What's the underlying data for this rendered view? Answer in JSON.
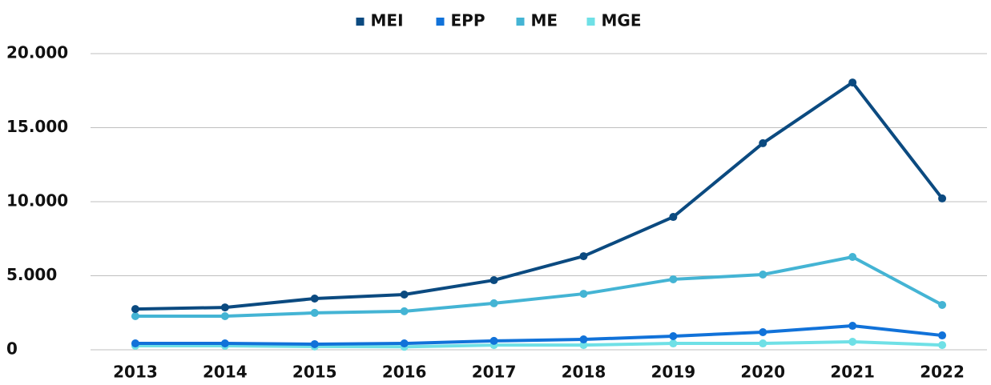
{
  "chart_data": {
    "type": "line",
    "categories": [
      "2013",
      "2014",
      "2015",
      "2016",
      "2017",
      "2018",
      "2019",
      "2020",
      "2021",
      "2022"
    ],
    "series": [
      {
        "name": "MEI",
        "color": "#0b4a80",
        "values": [
          2750,
          2860,
          3460,
          3730,
          4700,
          6320,
          8970,
          13950,
          18050,
          10220
        ]
      },
      {
        "name": "EPP",
        "color": "#1172d9",
        "values": [
          430,
          430,
          380,
          430,
          600,
          700,
          920,
          1190,
          1620,
          970
        ]
      },
      {
        "name": "ME",
        "color": "#44b4d4",
        "values": [
          2270,
          2270,
          2490,
          2600,
          3140,
          3780,
          4760,
          5080,
          6270,
          3030
        ]
      },
      {
        "name": "MGE",
        "color": "#6fe0e6",
        "values": [
          270,
          270,
          220,
          200,
          320,
          320,
          430,
          430,
          540,
          320
        ]
      }
    ],
    "ylim": [
      0,
      20000
    ],
    "yticks": [
      0,
      {
        "value": 5000,
        "label": "5.000"
      },
      {
        "value": 10000,
        "label": "10.000"
      },
      {
        "value": 15000,
        "label": "15.000"
      },
      {
        "value": 20000,
        "label": "20.000"
      }
    ],
    "grid": true,
    "legend": "top"
  }
}
